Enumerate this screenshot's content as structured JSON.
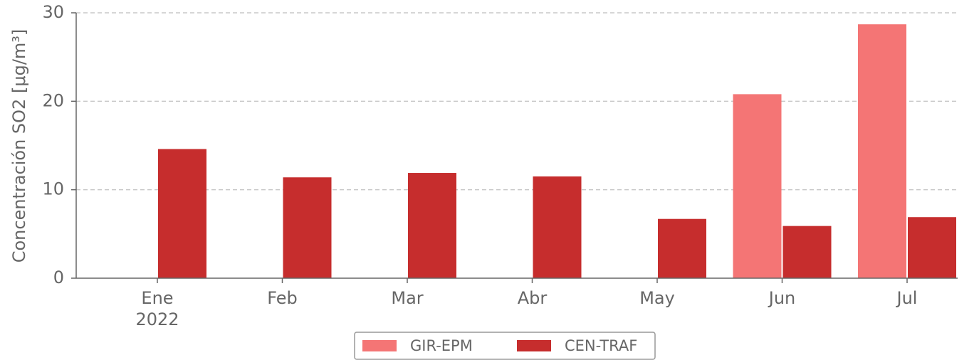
{
  "chart_data": {
    "type": "bar",
    "ylabel": "Concentración SO2 [μg/m³]",
    "categories": [
      "Ene",
      "Feb",
      "Mar",
      "Abr",
      "May",
      "Jun",
      "Jul"
    ],
    "x_sublabel": "2022",
    "series": [
      {
        "name": "GIR-EPM",
        "color": "#f47575",
        "values": [
          null,
          null,
          null,
          null,
          null,
          20.8,
          28.7
        ]
      },
      {
        "name": "CEN-TRAF",
        "color": "#c62d2d",
        "values": [
          14.6,
          11.4,
          11.9,
          11.5,
          6.7,
          5.9,
          6.9
        ]
      }
    ],
    "ylim": [
      0,
      30
    ],
    "yticks": [
      0,
      10,
      20,
      30
    ],
    "grid": true,
    "legend": "bottom"
  }
}
